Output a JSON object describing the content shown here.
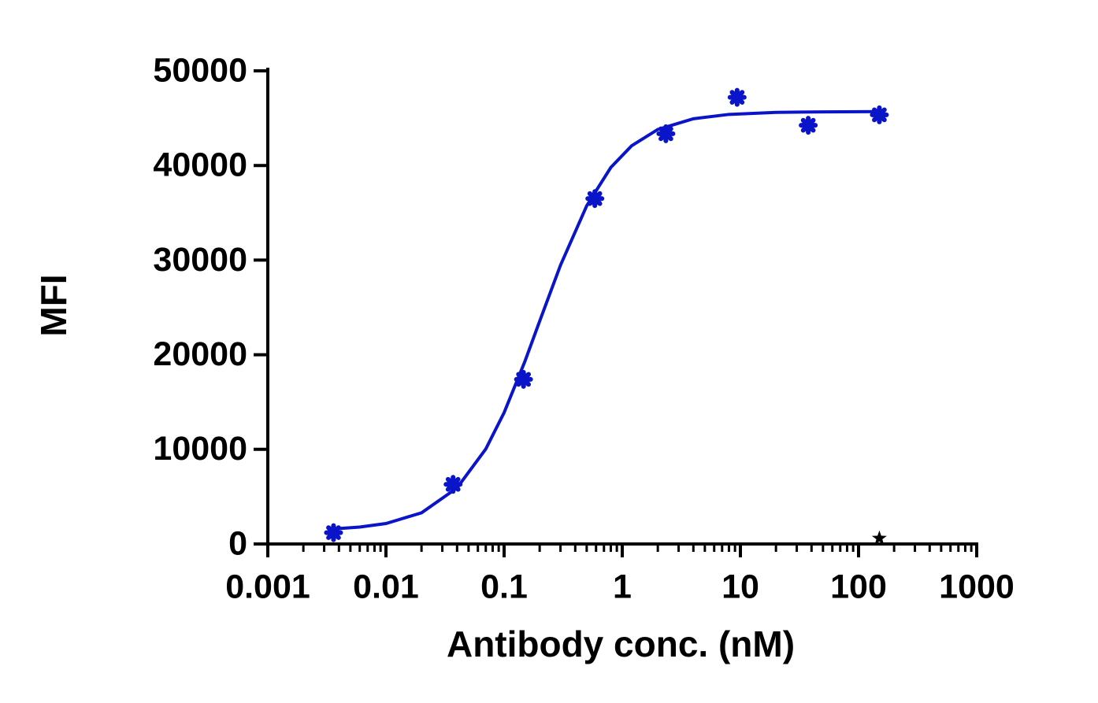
{
  "chart_data": {
    "type": "scatter",
    "x_label": "Antibody conc. (nM)",
    "y_label": "MFI",
    "x_scale": "log",
    "x": [
      0.0036,
      0.037,
      0.146,
      0.586,
      2.34,
      9.38,
      37.5,
      150
    ],
    "series": [
      {
        "color": "#0a14c8",
        "marker": "asterisk",
        "values": [
          1200,
          6300,
          17400,
          36500,
          43350,
          47200,
          44250,
          45350
        ]
      },
      {
        "color": "#000000",
        "marker": "star",
        "values": [
          null,
          null,
          null,
          null,
          null,
          null,
          null,
          600
        ]
      }
    ],
    "curve": {
      "color": "#0a14c8",
      "x": [
        0.0036,
        0.006,
        0.01,
        0.02,
        0.04,
        0.07,
        0.1,
        0.15,
        0.2,
        0.3,
        0.5,
        0.8,
        1.2,
        2,
        4,
        8,
        20,
        50,
        150
      ],
      "values": [
        1594,
        1786,
        2164,
        3293,
        5930,
        10042,
        13882,
        19299,
        23550,
        29455,
        35741,
        39788,
        42080,
        43805,
        44938,
        45398,
        45612,
        45664,
        45690
      ]
    },
    "xlim": [
      0.001,
      1000
    ],
    "xticks": [
      0.001,
      0.01,
      0.1,
      1,
      10,
      100,
      1000
    ],
    "ylim": [
      0,
      50000
    ],
    "yticks": [
      0,
      10000,
      20000,
      30000,
      40000,
      50000
    ]
  }
}
